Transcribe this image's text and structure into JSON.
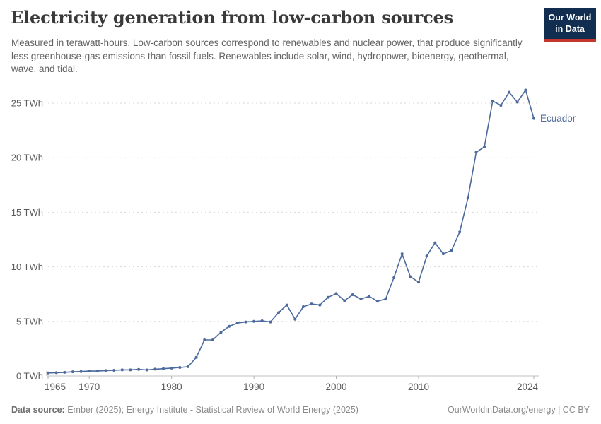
{
  "header": {
    "title": "Electricity generation from low-carbon sources",
    "subtitle": "Measured in terawatt-hours. Low-carbon sources correspond to renewables and nuclear power, that produce significantly less greenhouse-gas emissions than fossil fuels. Renewables include solar, wind, hydropower, bioenergy, geothermal, wave, and tidal.",
    "logo": {
      "line1": "Our World",
      "line2": "in Data"
    }
  },
  "chart_data": {
    "type": "line",
    "title": "Electricity generation from low-carbon sources",
    "unit": "TWh",
    "x": [
      1965,
      1966,
      1967,
      1968,
      1969,
      1970,
      1971,
      1972,
      1973,
      1974,
      1975,
      1976,
      1977,
      1978,
      1979,
      1980,
      1981,
      1982,
      1983,
      1984,
      1985,
      1986,
      1987,
      1988,
      1989,
      1990,
      1991,
      1992,
      1993,
      1994,
      1995,
      1996,
      1997,
      1998,
      1999,
      2000,
      2001,
      2002,
      2003,
      2004,
      2005,
      2006,
      2007,
      2008,
      2009,
      2010,
      2011,
      2012,
      2013,
      2014,
      2015,
      2016,
      2017,
      2018,
      2019,
      2020,
      2021,
      2022,
      2023,
      2024
    ],
    "series": [
      {
        "name": "Ecuador",
        "values": [
          0.27,
          0.3,
          0.33,
          0.38,
          0.41,
          0.45,
          0.45,
          0.49,
          0.52,
          0.56,
          0.56,
          0.6,
          0.55,
          0.62,
          0.67,
          0.72,
          0.78,
          0.85,
          1.7,
          3.3,
          3.3,
          4.0,
          4.55,
          4.85,
          4.95,
          5.0,
          5.05,
          4.95,
          5.8,
          6.5,
          5.2,
          6.35,
          6.6,
          6.5,
          7.2,
          7.55,
          6.9,
          7.45,
          7.05,
          7.3,
          6.85,
          7.05,
          9.0,
          11.2,
          9.1,
          8.6,
          11.0,
          12.2,
          11.2,
          11.5,
          13.2,
          16.3,
          20.5,
          21.0,
          25.2,
          24.8,
          26.0,
          25.1,
          26.2,
          23.6
        ]
      }
    ],
    "end_label": "Ecuador",
    "xlabel": "",
    "ylabel": "",
    "ylim": [
      0,
      26.6
    ],
    "xlim": [
      1965,
      2024
    ],
    "yticks": [
      0,
      5,
      10,
      15,
      20,
      25
    ],
    "ytick_suffix": " TWh",
    "xticks": [
      1965,
      1970,
      1980,
      1990,
      2000,
      2010,
      2024
    ],
    "grid": "horizontal-dashed",
    "legend_position": "end-of-line"
  },
  "footer": {
    "source_label": "Data source:",
    "source_text": " Ember (2025); Energy Institute - Statistical Review of World Energy (2025)",
    "rights": "OurWorldinData.org/energy | CC BY"
  },
  "colors": {
    "line": "#4C6A9C",
    "end_label": "#4C6A9C",
    "grid": "#dadada",
    "axis_line": "#c2c2c2",
    "tick": "#b0b0b0",
    "axis_text": "#5b5b5b",
    "title_text": "#3a3a3a",
    "subtitle_text": "#636363",
    "footer_text": "#8a8a8a",
    "logo_bg": "#112E51",
    "logo_red": "#C5362C"
  }
}
